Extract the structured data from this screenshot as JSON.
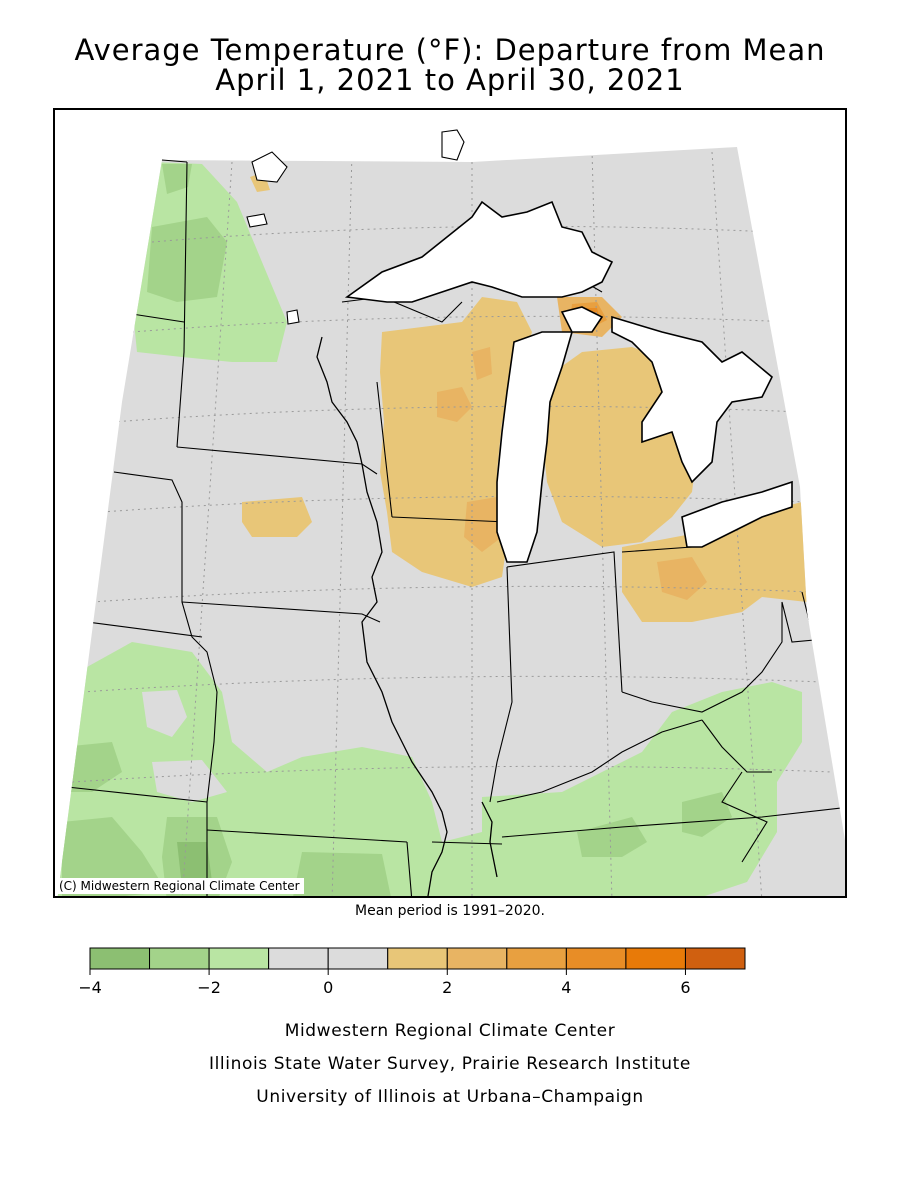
{
  "header": {
    "title_line1": "Average Temperature (°F): Departure from Mean",
    "title_line2": "April 1, 2021 to April 30, 2021"
  },
  "map": {
    "copyright": "(C) Midwestern Regional Climate Center",
    "background_color": "#d9d9d9",
    "lake_color": "#ffffff"
  },
  "note": "Mean period is 1991–2020.",
  "legend": {
    "bins": [
      {
        "from": -4,
        "to": -3,
        "color": "#8cbf72"
      },
      {
        "from": -3,
        "to": -2,
        "color": "#a3d38a"
      },
      {
        "from": -2,
        "to": -1,
        "color": "#b9e5a3"
      },
      {
        "from": -1,
        "to": 0,
        "color": "#dcdcdc"
      },
      {
        "from": 0,
        "to": 1,
        "color": "#dcdcdc"
      },
      {
        "from": 1,
        "to": 2,
        "color": "#e8c678"
      },
      {
        "from": 2,
        "to": 3,
        "color": "#e8b463"
      },
      {
        "from": 3,
        "to": 4,
        "color": "#e8a040"
      },
      {
        "from": 4,
        "to": 5,
        "color": "#e88d26"
      },
      {
        "from": 5,
        "to": 6,
        "color": "#e87a08"
      },
      {
        "from": 6,
        "to": 7,
        "color": "#d06010"
      }
    ],
    "tick_labels": [
      "−4",
      "−2",
      "0",
      "2",
      "4",
      "6"
    ],
    "tick_values": [
      -4,
      -2,
      0,
      2,
      4,
      6
    ]
  },
  "credits": {
    "line1": "Midwestern Regional Climate Center",
    "line2": "Illinois State Water Survey, Prairie Research Institute",
    "line3": "University of Illinois at Urbana–Champaign"
  }
}
